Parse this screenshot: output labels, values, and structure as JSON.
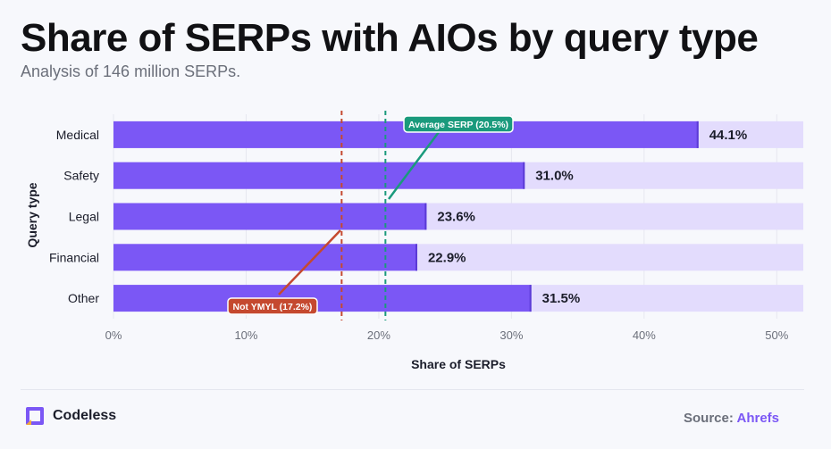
{
  "header": {
    "title": "Share of SERPs with AIOs by query type",
    "subtitle": "Analysis of 146 million SERPs."
  },
  "footer": {
    "brand": "Codeless",
    "source_label": "Source:",
    "source_name": "Ahrefs"
  },
  "colors": {
    "bar": "#7b57f5",
    "track": "#e3dcfd",
    "average_line": "#1a9a7c",
    "ymyl_line": "#c5492f",
    "brand_accent": "#7b57f5"
  },
  "icons": {
    "brand": "codeless-logo-icon"
  },
  "chart_data": {
    "type": "bar",
    "orientation": "horizontal",
    "categories": [
      "Medical",
      "Safety",
      "Legal",
      "Financial",
      "Other"
    ],
    "values": [
      44.1,
      31.0,
      23.6,
      22.9,
      31.5
    ],
    "data_labels": [
      "44.1%",
      "31.0%",
      "23.6%",
      "22.9%",
      "31.5%"
    ],
    "xlabel": "Share of SERPs",
    "ylabel": "Query type",
    "xlim": [
      0,
      52
    ],
    "x_ticks": [
      0,
      10,
      20,
      30,
      40,
      50
    ],
    "x_tick_labels": [
      "0%",
      "10%",
      "20%",
      "30%",
      "40%",
      "50%"
    ],
    "grid": true,
    "reference_lines": [
      {
        "label": "Average SERP (20.5%)",
        "value": 20.5,
        "style": "dashed"
      },
      {
        "label": "Not YMYL (17.2%)",
        "value": 17.2,
        "style": "dashed"
      }
    ]
  }
}
